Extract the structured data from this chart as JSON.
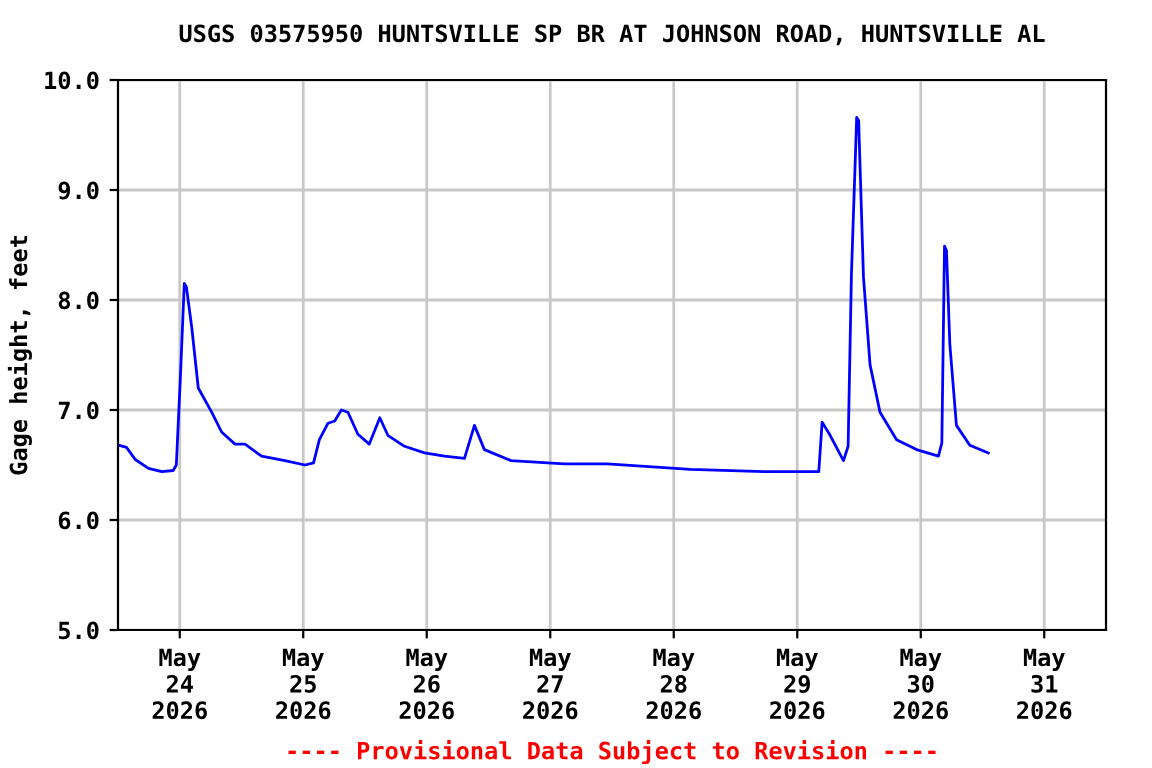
{
  "chart_data": {
    "type": "line",
    "title": "USGS 03575950 HUNTSVILLE SP BR AT JOHNSON ROAD, HUNTSVILLE AL",
    "ylabel": "Gage height, feet",
    "annotations": [
      "---- Provisional Data Subject to Revision ----"
    ],
    "x": [
      "2026-05-23T12:06",
      "2026-05-23T13:39",
      "2026-05-23T15:21",
      "2026-05-23T17:55",
      "2026-05-23T20:31",
      "2026-05-23T22:43",
      "2026-05-23T23:20",
      "2026-05-24T00:07",
      "2026-05-24T00:53",
      "2026-05-24T01:17",
      "2026-05-24T02:20",
      "2026-05-24T03:36",
      "2026-05-24T06:12",
      "2026-05-24T08:08",
      "2026-05-24T10:44",
      "2026-05-24T12:41",
      "2026-05-24T15:54",
      "2026-05-24T20:26",
      "2026-05-25T00:19",
      "2026-05-25T02:00",
      "2026-05-25T03:08",
      "2026-05-25T04:49",
      "2026-05-25T06:07",
      "2026-05-25T07:24",
      "2026-05-25T08:41",
      "2026-05-25T10:37",
      "2026-05-25T12:50",
      "2026-05-25T14:53",
      "2026-05-25T16:26",
      "2026-05-25T19:41",
      "2026-05-25T23:34",
      "2026-05-26T03:27",
      "2026-05-26T07:20",
      "2026-05-26T09:16",
      "2026-05-26T11:12",
      "2026-05-26T16:22",
      "2026-05-27T02:43",
      "2026-05-27T11:05",
      "2026-05-28T03:15",
      "2026-05-28T17:29",
      "2026-05-29T04:11",
      "2026-05-29T04:50",
      "2026-05-29T06:23",
      "2026-05-29T08:59",
      "2026-05-29T09:53",
      "2026-05-29T10:32",
      "2026-05-29T11:33",
      "2026-05-29T11:56",
      "2026-05-29T12:52",
      "2026-05-29T14:09",
      "2026-05-29T16:05",
      "2026-05-29T19:18",
      "2026-05-29T23:11",
      "2026-05-30T03:26",
      "2026-05-30T04:06",
      "2026-05-30T04:37",
      "2026-05-30T05:00",
      "2026-05-30T05:39",
      "2026-05-30T06:56",
      "2026-05-30T09:32",
      "2026-05-30T13:08"
    ],
    "series": [
      {
        "color": "#0000ff",
        "values": [
          6.68,
          6.66,
          6.55,
          6.47,
          6.44,
          6.45,
          6.5,
          7.29,
          8.15,
          8.12,
          7.75,
          7.2,
          6.98,
          6.8,
          6.69,
          6.69,
          6.58,
          6.54,
          6.5,
          6.52,
          6.73,
          6.88,
          6.9,
          7.0,
          6.98,
          6.78,
          6.69,
          6.93,
          6.77,
          6.67,
          6.61,
          6.58,
          6.56,
          6.86,
          6.64,
          6.54,
          6.51,
          6.51,
          6.46,
          6.44,
          6.44,
          6.89,
          6.77,
          6.54,
          6.67,
          8.24,
          9.66,
          9.63,
          8.21,
          7.41,
          6.98,
          6.73,
          6.64,
          6.58,
          6.7,
          8.49,
          8.45,
          7.6,
          6.86,
          6.68,
          6.61
        ]
      }
    ],
    "xlim": [
      "2026-05-23T12:00",
      "2026-05-31T12:00"
    ],
    "xticks": [
      {
        "value": "2026-05-24",
        "label": "May\n24\n2026"
      },
      {
        "value": "2026-05-25",
        "label": "May\n25\n2026"
      },
      {
        "value": "2026-05-26",
        "label": "May\n26\n2026"
      },
      {
        "value": "2026-05-27",
        "label": "May\n27\n2026"
      },
      {
        "value": "2026-05-28",
        "label": "May\n28\n2026"
      },
      {
        "value": "2026-05-29",
        "label": "May\n29\n2026"
      },
      {
        "value": "2026-05-30",
        "label": "May\n30\n2026"
      },
      {
        "value": "2026-05-31",
        "label": "May\n31\n2026"
      }
    ],
    "ylim": [
      5,
      10
    ],
    "yticks": [
      {
        "value": 5,
        "label": "5.0"
      },
      {
        "value": 6,
        "label": "6.0"
      },
      {
        "value": 7,
        "label": "7.0"
      },
      {
        "value": 8,
        "label": "8.0"
      },
      {
        "value": 9,
        "label": "9.0"
      },
      {
        "value": 10,
        "label": "10.0"
      }
    ],
    "grid": true,
    "legend": false,
    "marker": "none",
    "line_style": "solid"
  }
}
